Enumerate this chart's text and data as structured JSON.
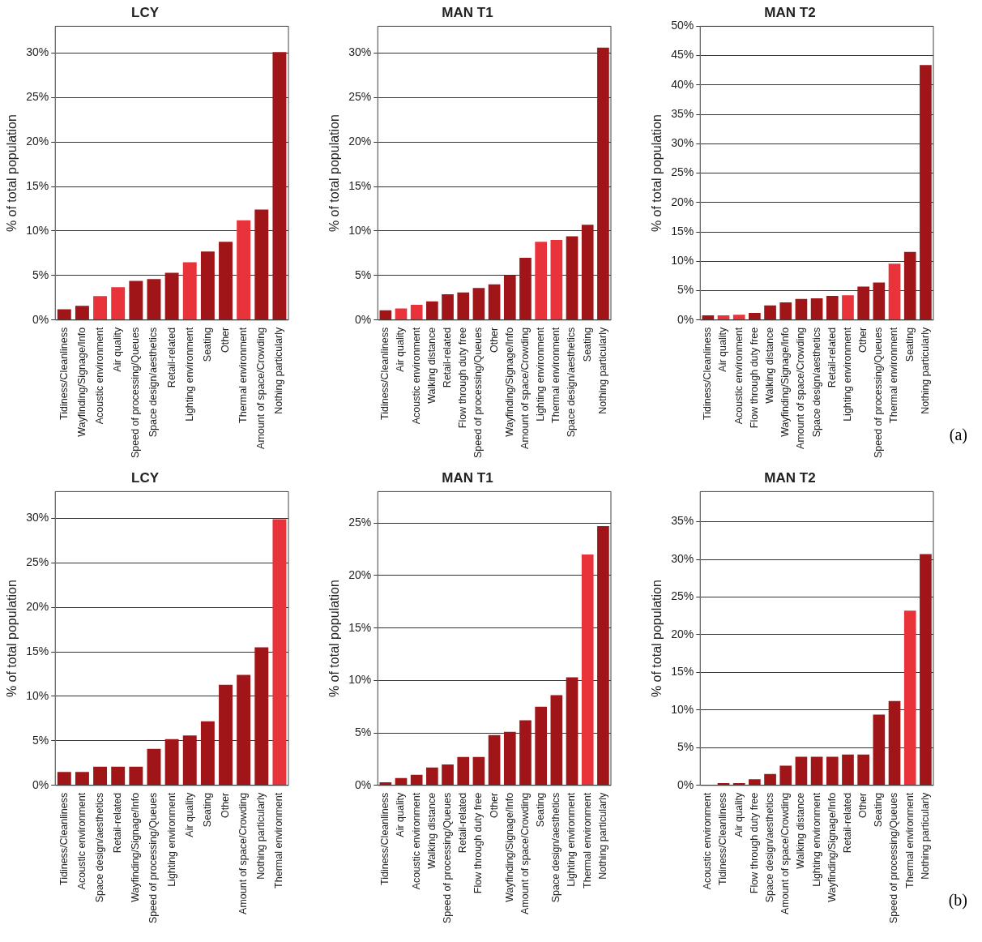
{
  "chart_data": [
    {
      "type": "bar",
      "title": "LCY",
      "ylabel": "% of total population",
      "grid": "y",
      "ylim": [
        0,
        33
      ],
      "yticks": [
        {
          "value": 0,
          "label": "0%"
        },
        {
          "value": 5,
          "label": "5%"
        },
        {
          "value": 10,
          "label": "10%"
        },
        {
          "value": 15,
          "label": "15%"
        },
        {
          "value": 20,
          "label": "20%"
        },
        {
          "value": 25,
          "label": "25%"
        },
        {
          "value": 30,
          "label": "30%"
        }
      ],
      "categories": [
        "Tidiness/Cleanliness",
        "Wayfinding/Signage/Info",
        "Acoustic environment",
        "Air quality",
        "Speed of processing/Queues",
        "Space design/aesthetics",
        "Retail-related",
        "Lighting environment",
        "Seating",
        "Other",
        "Thermal environment",
        "Amount of space/Crowding",
        "Nothing particularly"
      ],
      "values": [
        1.2,
        1.6,
        2.7,
        3.7,
        4.4,
        4.6,
        5.3,
        6.5,
        7.7,
        8.8,
        11.2,
        12.4,
        30.1
      ],
      "colors": [
        "#a01518",
        "#a01518",
        "#e8333a",
        "#e8333a",
        "#a01518",
        "#a01518",
        "#a01518",
        "#e8333a",
        "#a01518",
        "#a01518",
        "#e8333a",
        "#a01518",
        "#a01518"
      ]
    },
    {
      "type": "bar",
      "title": "MAN T1",
      "ylabel": "% of total population",
      "grid": "y",
      "ylim": [
        0,
        33
      ],
      "yticks": [
        {
          "value": 0,
          "label": "0%"
        },
        {
          "value": 5,
          "label": "5%"
        },
        {
          "value": 10,
          "label": "10%"
        },
        {
          "value": 15,
          "label": "15%"
        },
        {
          "value": 20,
          "label": "20%"
        },
        {
          "value": 25,
          "label": "25%"
        },
        {
          "value": 30,
          "label": "30%"
        }
      ],
      "categories": [
        "Tidiness/Cleanliness",
        "Air quality",
        "Acoustic environment",
        "Walking distance",
        "Retail-related",
        "Flow through duty free",
        "Speed of processing/Queues",
        "Other",
        "Wayfinding/Signage/Info",
        "Amount of space/Crowding",
        "Lighting environment",
        "Thermal environment",
        "Space design/aesthetics",
        "Seating",
        "Nothing particularly"
      ],
      "values": [
        1.1,
        1.3,
        1.7,
        2.1,
        2.9,
        3.1,
        3.6,
        4.0,
        5.0,
        7.0,
        8.8,
        9.0,
        9.4,
        10.7,
        30.6
      ],
      "colors": [
        "#a01518",
        "#e8333a",
        "#e8333a",
        "#a01518",
        "#a01518",
        "#a01518",
        "#a01518",
        "#a01518",
        "#a01518",
        "#a01518",
        "#e8333a",
        "#e8333a",
        "#a01518",
        "#a01518",
        "#a01518"
      ]
    },
    {
      "type": "bar",
      "title": "MAN T2",
      "ylabel": "% of total population",
      "grid": "y",
      "ylim": [
        0,
        50
      ],
      "yticks": [
        {
          "value": 0,
          "label": "0%"
        },
        {
          "value": 5,
          "label": "5%"
        },
        {
          "value": 10,
          "label": "10%"
        },
        {
          "value": 15,
          "label": "15%"
        },
        {
          "value": 20,
          "label": "20%"
        },
        {
          "value": 25,
          "label": "25%"
        },
        {
          "value": 30,
          "label": "30%"
        },
        {
          "value": 35,
          "label": "35%"
        },
        {
          "value": 40,
          "label": "40%"
        },
        {
          "value": 45,
          "label": "45%"
        },
        {
          "value": 50,
          "label": "50%"
        }
      ],
      "categories": [
        "Tidiness/Cleanliness",
        "Air quality",
        "Acoustic environment",
        "Flow through duty free",
        "Walking distance",
        "Wayfinding/Signage/Info",
        "Amount of space/Crowding",
        "Space design/aesthetics",
        "Retail-related",
        "Lighting environment",
        "Other",
        "Speed of processing/Queues",
        "Thermal environment",
        "Seating",
        "Nothing particularly"
      ],
      "values": [
        0.8,
        0.8,
        0.9,
        1.2,
        2.5,
        3.0,
        3.6,
        3.7,
        4.1,
        4.2,
        5.7,
        6.4,
        9.6,
        11.6,
        43.4
      ],
      "colors": [
        "#a01518",
        "#e8333a",
        "#e8333a",
        "#a01518",
        "#a01518",
        "#a01518",
        "#a01518",
        "#a01518",
        "#a01518",
        "#e8333a",
        "#a01518",
        "#a01518",
        "#e8333a",
        "#a01518",
        "#a01518"
      ],
      "annotations": [
        "(a)"
      ]
    },
    {
      "type": "bar",
      "title": "LCY",
      "ylabel": "% of total population",
      "grid": "y",
      "ylim": [
        0,
        33
      ],
      "yticks": [
        {
          "value": 0,
          "label": "0%"
        },
        {
          "value": 5,
          "label": "5%"
        },
        {
          "value": 10,
          "label": "10%"
        },
        {
          "value": 15,
          "label": "15%"
        },
        {
          "value": 20,
          "label": "20%"
        },
        {
          "value": 25,
          "label": "25%"
        },
        {
          "value": 30,
          "label": "30%"
        }
      ],
      "categories": [
        "Tidiness/Cleanliness",
        "Acoustic environment",
        "Space design/aesthetics",
        "Retail-related",
        "Wayfinding/Signage/Info",
        "Speed of processing/Queues",
        "Lighting environment",
        "Air quality",
        "Seating",
        "Other",
        "Amount of space/Crowding",
        "Nothing particularly",
        "Thermal environment"
      ],
      "values": [
        1.5,
        1.5,
        2.1,
        2.1,
        2.1,
        4.1,
        5.2,
        5.6,
        7.2,
        11.3,
        12.4,
        15.5,
        29.9
      ],
      "colors": [
        "#a01518",
        "#a01518",
        "#a01518",
        "#a01518",
        "#a01518",
        "#a01518",
        "#a01518",
        "#a01518",
        "#a01518",
        "#a01518",
        "#a01518",
        "#a01518",
        "#e8333a"
      ]
    },
    {
      "type": "bar",
      "title": "MAN T1",
      "ylabel": "% of total population",
      "grid": "y",
      "ylim": [
        0,
        28
      ],
      "yticks": [
        {
          "value": 0,
          "label": "0%"
        },
        {
          "value": 5,
          "label": "5%"
        },
        {
          "value": 10,
          "label": "10%"
        },
        {
          "value": 15,
          "label": "15%"
        },
        {
          "value": 20,
          "label": "20%"
        },
        {
          "value": 25,
          "label": "25%"
        }
      ],
      "categories": [
        "Tidiness/Cleanliness",
        "Air quality",
        "Acoustic environment",
        "Walking distance",
        "Speed of processing/Queues",
        "Retail-related",
        "Flow through duty free",
        "Other",
        "Wayfinding/Signage/Info",
        "Amount of space/Crowding",
        "Seating",
        "Space design/aesthetics",
        "Lighting environment",
        "Thermal environment",
        "Nothing particularly"
      ],
      "values": [
        0.3,
        0.7,
        1.0,
        1.7,
        2.0,
        2.7,
        2.7,
        4.8,
        5.1,
        6.2,
        7.5,
        8.6,
        10.3,
        22.0,
        24.7
      ],
      "colors": [
        "#a01518",
        "#a01518",
        "#a01518",
        "#a01518",
        "#a01518",
        "#a01518",
        "#a01518",
        "#a01518",
        "#a01518",
        "#a01518",
        "#a01518",
        "#a01518",
        "#a01518",
        "#e8333a",
        "#a01518"
      ]
    },
    {
      "type": "bar",
      "title": "MAN T2",
      "ylabel": "% of total population",
      "grid": "y",
      "ylim": [
        0,
        39
      ],
      "yticks": [
        {
          "value": 0,
          "label": "0%"
        },
        {
          "value": 5,
          "label": "5%"
        },
        {
          "value": 10,
          "label": "10%"
        },
        {
          "value": 15,
          "label": "15%"
        },
        {
          "value": 20,
          "label": "20%"
        },
        {
          "value": 25,
          "label": "25%"
        },
        {
          "value": 30,
          "label": "30%"
        },
        {
          "value": 35,
          "label": "35%"
        }
      ],
      "categories": [
        "Acoustic environment",
        "Tidiness/Cleanliness",
        "Air quality",
        "Flow through duty free",
        "Space design/aesthetics",
        "Amount of space/Crowding",
        "Walking distance",
        "Lighting environment",
        "Wayfinding/Signage/Info",
        "Retail-related",
        "Other",
        "Seating",
        "Speed of processing/Queues",
        "Thermal environment",
        "Nothing particularly"
      ],
      "values": [
        0,
        0.3,
        0.3,
        0.8,
        1.5,
        2.6,
        3.8,
        3.8,
        3.8,
        4.1,
        4.1,
        9.4,
        11.2,
        23.2,
        30.7
      ],
      "colors": [
        "#a01518",
        "#a01518",
        "#a01518",
        "#a01518",
        "#a01518",
        "#a01518",
        "#a01518",
        "#a01518",
        "#a01518",
        "#a01518",
        "#a01518",
        "#a01518",
        "#a01518",
        "#e8333a",
        "#a01518"
      ],
      "annotations": [
        "(b)"
      ]
    }
  ]
}
